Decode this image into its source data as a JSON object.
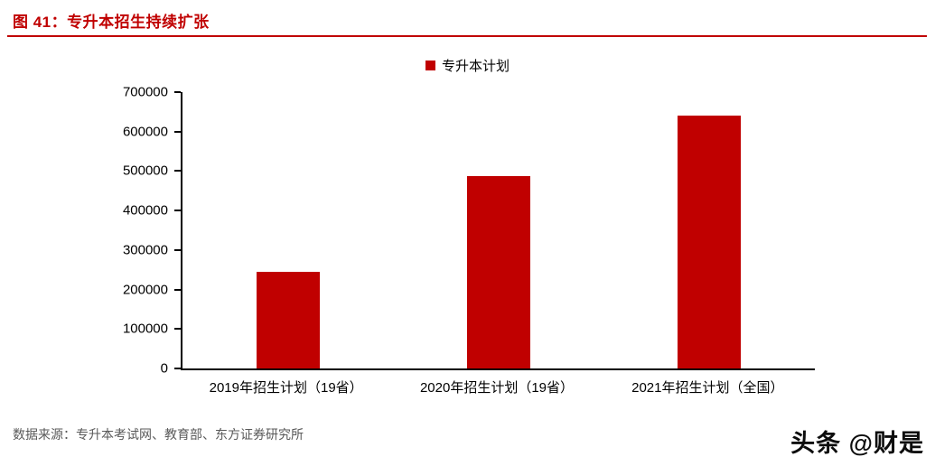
{
  "header": {
    "title": "图 41：专升本招生持续扩张",
    "accent_color": "#C00000"
  },
  "legend": {
    "label": "专升本计划",
    "swatch_color": "#C00000"
  },
  "chart_data": {
    "type": "bar",
    "title": "专升本计划",
    "categories": [
      "2019年招生计划（19省）",
      "2020年招生计划（19省）",
      "2021年招生计划（全国）"
    ],
    "values": [
      245000,
      487000,
      641000
    ],
    "series_color": "#C00000",
    "xlabel": "",
    "ylabel": "",
    "ylim": [
      0,
      700000
    ],
    "yticks": [
      0,
      100000,
      200000,
      300000,
      400000,
      500000,
      600000,
      700000
    ],
    "grid": false,
    "legend_position": "top-center"
  },
  "footer": {
    "source": "数据来源：专升本考试网、教育部、东方证券研究所"
  },
  "watermark": {
    "text": "头条 @财是"
  }
}
